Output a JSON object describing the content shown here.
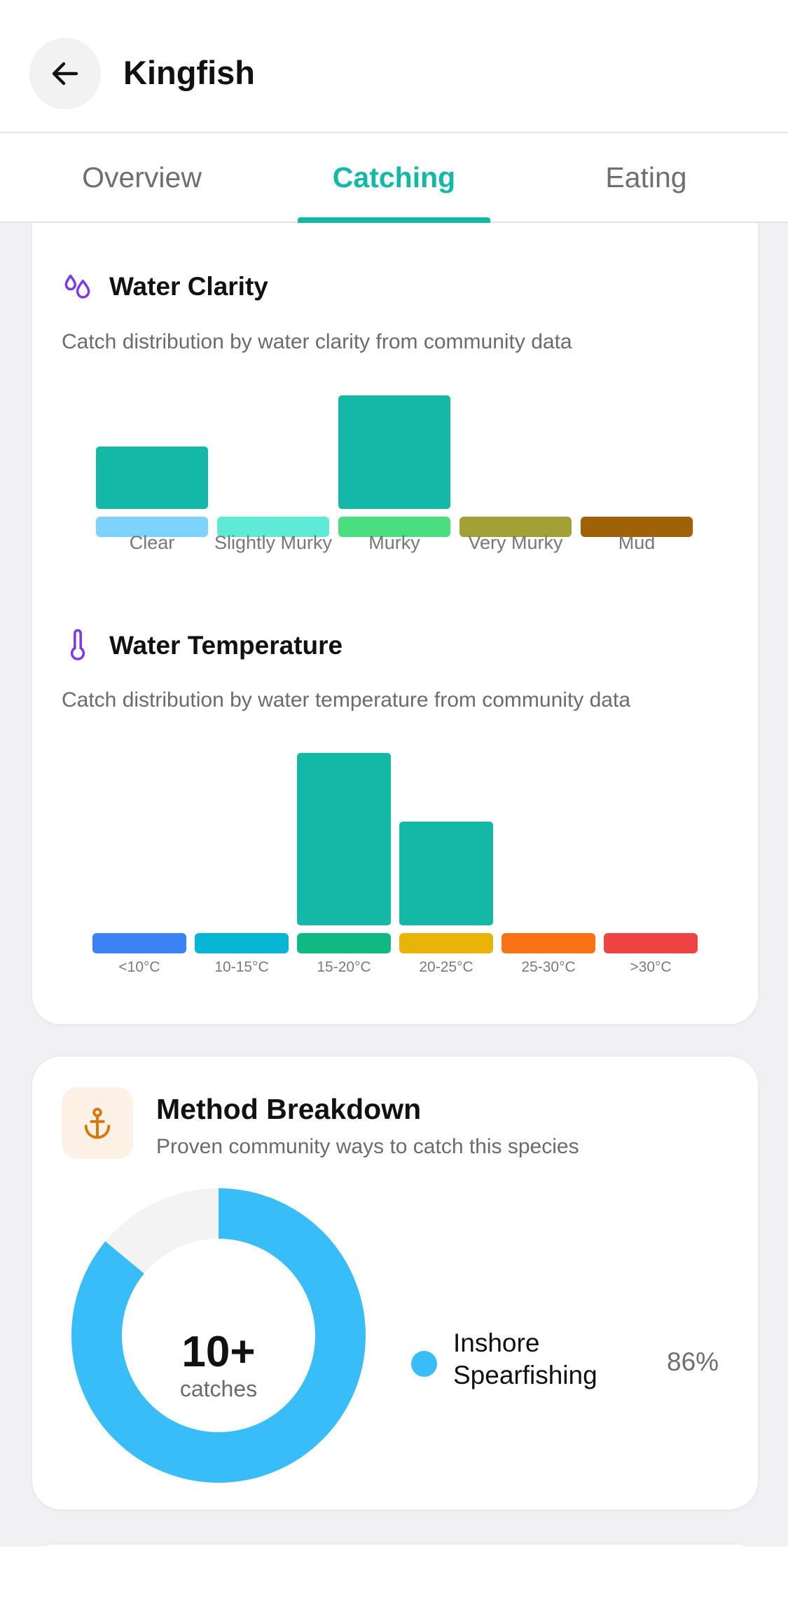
{
  "header": {
    "title": "Kingfish",
    "back_icon": "arrow-left-icon"
  },
  "tabs": [
    {
      "label": "Overview",
      "active": false
    },
    {
      "label": "Catching",
      "active": true
    },
    {
      "label": "Eating",
      "active": false
    }
  ],
  "colors": {
    "accent": "#14b8a6",
    "bar": "#14b8a6",
    "purple": "#7c3aed",
    "donut": "#38bdf8",
    "donut_rest": "#f3f3f3",
    "anchor": "#d97706"
  },
  "water_clarity": {
    "title": "Water Clarity",
    "icon": "droplets-icon",
    "subtitle": "Catch distribution by water clarity from community data",
    "categories": [
      {
        "label": "Clear",
        "value": 0.55,
        "swatch": "#7dd3fc"
      },
      {
        "label": "Slightly Murky",
        "value": 0,
        "swatch": "#5eead4"
      },
      {
        "label": "Murky",
        "value": 1.0,
        "swatch": "#4ade80"
      },
      {
        "label": "Very Murky",
        "value": 0,
        "swatch": "#a3a035"
      },
      {
        "label": "Mud",
        "value": 0,
        "swatch": "#a16207"
      }
    ]
  },
  "water_temperature": {
    "title": "Water Temperature",
    "icon": "thermometer-icon",
    "subtitle": "Catch distribution by water temperature from community data",
    "categories": [
      {
        "label": "<10°C",
        "value": 0,
        "swatch": "#3b82f6"
      },
      {
        "label": "10-15°C",
        "value": 0,
        "swatch": "#06b6d4"
      },
      {
        "label": "15-20°C",
        "value": 1.0,
        "swatch": "#10b981"
      },
      {
        "label": "20-25°C",
        "value": 0.6,
        "swatch": "#eab308"
      },
      {
        "label": "25-30°C",
        "value": 0,
        "swatch": "#f97316"
      },
      {
        "label": ">30°C",
        "value": 0,
        "swatch": "#ef4444"
      }
    ]
  },
  "method_breakdown": {
    "title": "Method Breakdown",
    "subtitle": "Proven community ways to catch this species",
    "icon": "anchor-icon",
    "total_count": "10+",
    "total_unit": "catches",
    "methods": [
      {
        "label": "Inshore Spearfishing",
        "percent_text": "86%",
        "fraction": 0.86,
        "color": "#38bdf8"
      }
    ]
  }
}
